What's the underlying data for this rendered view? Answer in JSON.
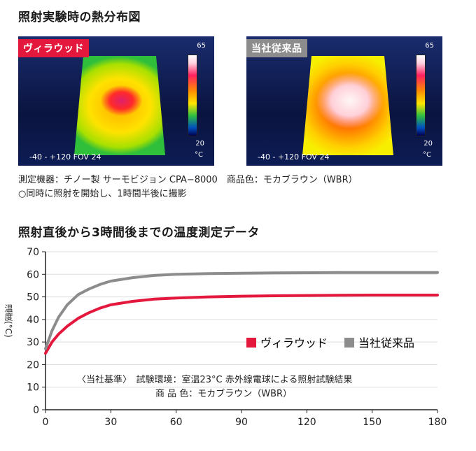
{
  "thermal_section": {
    "title": "照射実験時の熱分布図",
    "left": {
      "badge": "ヴィラウッド",
      "scale_max": "65",
      "scale_min": "20",
      "unit": "°C",
      "range": "-40 - +120 FOV 24"
    },
    "right": {
      "badge": "当社従来品",
      "scale_max": "65",
      "scale_min": "20",
      "unit": "°C",
      "range": "-40 - +120 FOV 24"
    },
    "caption_line1": "測定機器：チノー製 サーモビジョン CPA−8000　商品色：モカブラウン（WBR）",
    "caption_line2": "○同時に照射を開始し、1時間半後に撮影"
  },
  "colors": {
    "villawood": "#e3183c",
    "conventional": "#8c8c8c",
    "axis": "#222222",
    "grid": "#dddddd"
  },
  "chart_data": {
    "type": "line",
    "title": "照射直後から3時間後までの温度測定データ",
    "xlabel": "",
    "ylabel": "温度(°C)",
    "xlim": [
      0,
      180
    ],
    "ylim": [
      0,
      70
    ],
    "x_ticks": [
      0,
      30,
      60,
      90,
      120,
      150,
      180
    ],
    "y_ticks": [
      0,
      10,
      20,
      30,
      40,
      50,
      60,
      70
    ],
    "x": [
      0,
      3,
      6,
      10,
      15,
      20,
      25,
      30,
      40,
      50,
      60,
      75,
      90,
      105,
      120,
      135,
      150,
      165,
      180
    ],
    "series": [
      {
        "name": "ヴィラウッド",
        "values": [
          25,
          30,
          33.5,
          37,
          40.5,
          43,
          45,
          46.5,
          48,
          49,
          49.5,
          50,
          50.3,
          50.5,
          50.6,
          50.7,
          50.8,
          50.8,
          50.8
        ]
      },
      {
        "name": "当社従来品",
        "values": [
          27,
          35,
          41,
          46.5,
          51,
          53.5,
          55.5,
          57,
          58.5,
          59.5,
          60,
          60.3,
          60.5,
          60.6,
          60.7,
          60.8,
          60.8,
          60.8,
          60.8
        ]
      }
    ],
    "legend": [
      "ヴィラウッド",
      "当社従来品"
    ],
    "legend_position": "center-right",
    "annotation_line1": "〈当社基準〉　試験環境：室温23°C 赤外線電球による照射試験結果",
    "annotation_line2": "商 品 色：モカブラウン（WBR）"
  }
}
